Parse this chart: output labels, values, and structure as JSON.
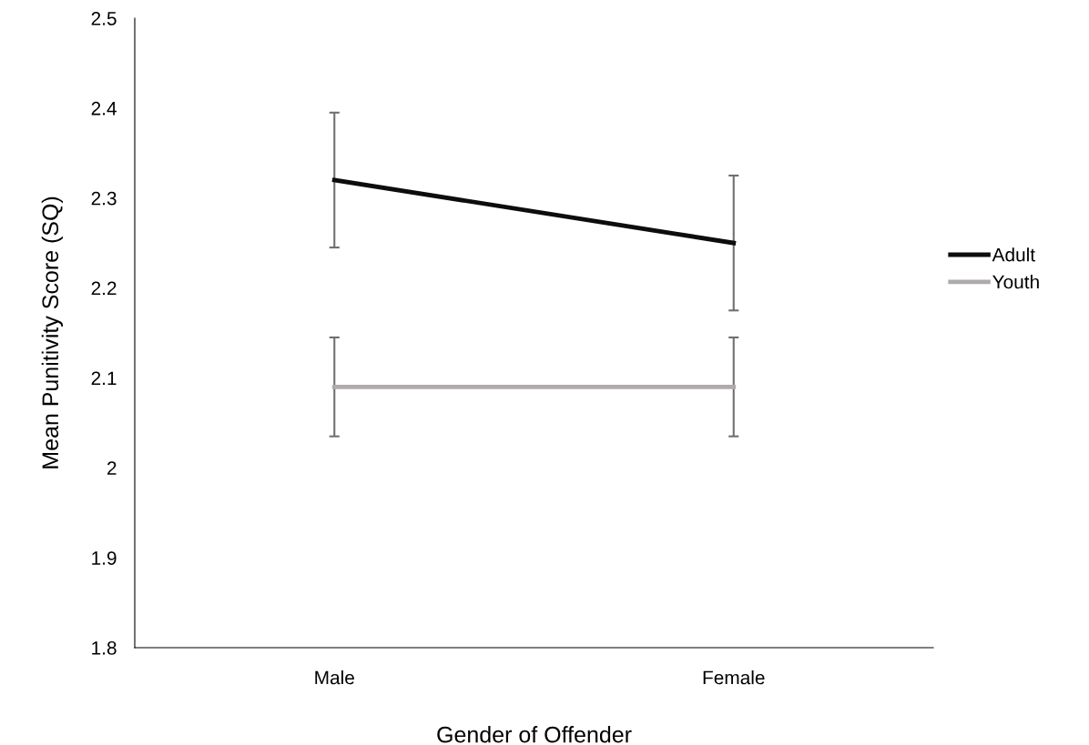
{
  "chart_data": {
    "type": "line",
    "xlabel": "Gender of Offender",
    "ylabel": "Mean Punitivity Score (SQ)",
    "categories": [
      "Male",
      "Female"
    ],
    "series": [
      {
        "name": "Adult",
        "color": "#0d0d0d",
        "values": [
          2.32,
          2.25
        ],
        "errors": [
          0.075,
          0.075
        ]
      },
      {
        "name": "Youth",
        "color": "#afabab",
        "values": [
          2.09,
          2.09
        ],
        "errors": [
          0.055,
          0.055
        ]
      }
    ],
    "ylim": [
      1.8,
      2.5
    ],
    "yticks": [
      1.8,
      1.9,
      2,
      2.1,
      2.2,
      2.3,
      2.4,
      2.5
    ],
    "grid": false,
    "legend": "right",
    "marker": "none",
    "line_style": "solid"
  }
}
